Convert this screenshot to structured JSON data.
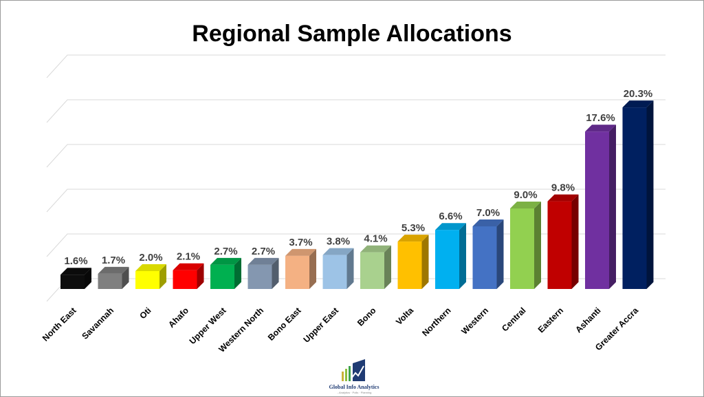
{
  "chart_data": {
    "type": "bar",
    "title": "Regional Sample Allocations",
    "categories": [
      "North East",
      "Savannah",
      "Oti",
      "Ahafo",
      "Upper West",
      "Western North",
      "Bono East",
      "Upper East",
      "Bono",
      "Volta",
      "Northern",
      "Western",
      "Central",
      "Eastern",
      "Ashanti",
      "Greater Accra"
    ],
    "values": [
      1.6,
      1.7,
      2.0,
      2.1,
      2.7,
      2.7,
      3.7,
      3.8,
      4.1,
      5.3,
      6.6,
      7.0,
      9.0,
      9.8,
      17.6,
      20.3
    ],
    "value_labels": [
      "1.6%",
      "1.7%",
      "2.0%",
      "2.1%",
      "2.7%",
      "2.7%",
      "3.7%",
      "3.8%",
      "4.1%",
      "5.3%",
      "6.6%",
      "7.0%",
      "9.0%",
      "9.8%",
      "17.6%",
      "20.3%"
    ],
    "colors": [
      "#0d0d0d",
      "#7f7f7f",
      "#ffff00",
      "#ff0000",
      "#00b050",
      "#8497b0",
      "#f4b183",
      "#9dc3e6",
      "#a9d18e",
      "#ffc000",
      "#00b0f0",
      "#4472c4",
      "#92d050",
      "#c00000",
      "#7030a0",
      "#002060"
    ],
    "ylim": [
      0,
      25
    ],
    "grid": true,
    "style": "3d-bar",
    "xlabel": "",
    "ylabel": ""
  },
  "logo": {
    "name": "Global Info Analytics",
    "tagline": "...Analytics · Polls · Planning"
  }
}
